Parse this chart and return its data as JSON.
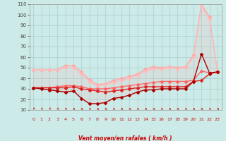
{
  "x": [
    0,
    1,
    2,
    3,
    4,
    5,
    6,
    7,
    8,
    9,
    10,
    11,
    12,
    13,
    14,
    15,
    16,
    17,
    18,
    19,
    20,
    21,
    22,
    23
  ],
  "line_max": [
    48,
    48,
    48,
    48,
    52,
    52,
    46,
    39,
    34,
    35,
    38,
    40,
    42,
    44,
    49,
    51,
    50,
    51,
    50,
    51,
    62,
    110,
    98,
    46
  ],
  "line_p75": [
    48,
    48,
    48,
    48,
    50,
    50,
    44,
    37,
    33,
    34,
    36,
    38,
    40,
    43,
    47,
    49,
    49,
    50,
    49,
    50,
    60,
    108,
    96,
    46
  ],
  "line_p50": [
    31,
    31,
    31,
    32,
    33,
    33,
    32,
    30,
    30,
    30,
    31,
    32,
    33,
    34,
    35,
    36,
    37,
    37,
    37,
    37,
    38,
    47,
    45,
    46
  ],
  "line_p25": [
    31,
    31,
    31,
    31,
    31,
    32,
    30,
    29,
    28,
    27,
    28,
    29,
    30,
    31,
    32,
    32,
    32,
    32,
    32,
    32,
    37,
    38,
    44,
    46
  ],
  "line_min": [
    31,
    30,
    29,
    28,
    27,
    28,
    21,
    16,
    16,
    17,
    21,
    22,
    24,
    27,
    29,
    29,
    30,
    30,
    30,
    30,
    37,
    63,
    45,
    46
  ],
  "bg_color": "#cceae7",
  "grid_color": "#aacccc",
  "color_max": "#ffaaaa",
  "color_p75": "#ffbbbb",
  "color_p50": "#ff6666",
  "color_p25": "#dd2222",
  "color_min": "#aa0000",
  "xlabel": "Vent moyen/en rafales ( km/h )",
  "xlabel_color": "#cc0000",
  "xlim": [
    -0.5,
    23.5
  ],
  "ylim": [
    10,
    110
  ],
  "yticks": [
    10,
    20,
    30,
    40,
    50,
    60,
    70,
    80,
    90,
    100,
    110
  ],
  "xticks": [
    0,
    1,
    2,
    3,
    4,
    5,
    6,
    7,
    8,
    9,
    10,
    11,
    12,
    13,
    14,
    15,
    16,
    17,
    18,
    19,
    20,
    21,
    22,
    23
  ],
  "arrow_angles_deg": [
    220,
    210,
    210,
    205,
    195,
    185,
    175,
    175,
    175,
    175,
    175,
    175,
    175,
    175,
    175,
    175,
    175,
    175,
    175,
    175,
    175,
    175,
    180,
    180
  ]
}
